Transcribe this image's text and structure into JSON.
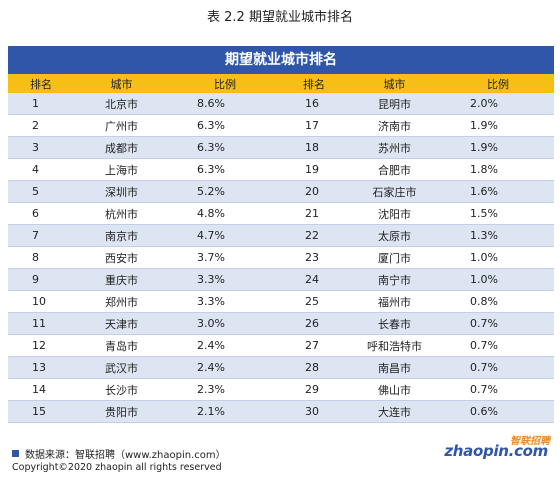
{
  "caption": "表 2.2 期望就业城市排名",
  "banner": "期望就业城市排名",
  "headers": [
    "排名",
    "城市",
    "比例",
    "排名",
    "城市",
    "比例"
  ],
  "rows": [
    {
      "rank1": "1",
      "city1": "北京市",
      "ratio1": "8.6%",
      "rank2": "16",
      "city2": "昆明市",
      "ratio2": "2.0%"
    },
    {
      "rank1": "2",
      "city1": "广州市",
      "ratio1": "6.3%",
      "rank2": "17",
      "city2": "济南市",
      "ratio2": "1.9%"
    },
    {
      "rank1": "3",
      "city1": "成都市",
      "ratio1": "6.3%",
      "rank2": "18",
      "city2": "苏州市",
      "ratio2": "1.9%"
    },
    {
      "rank1": "4",
      "city1": "上海市",
      "ratio1": "6.3%",
      "rank2": "19",
      "city2": "合肥市",
      "ratio2": "1.8%"
    },
    {
      "rank1": "5",
      "city1": "深圳市",
      "ratio1": "5.2%",
      "rank2": "20",
      "city2": "石家庄市",
      "ratio2": "1.6%"
    },
    {
      "rank1": "6",
      "city1": "杭州市",
      "ratio1": "4.8%",
      "rank2": "21",
      "city2": "沈阳市",
      "ratio2": "1.5%"
    },
    {
      "rank1": "7",
      "city1": "南京市",
      "ratio1": "4.7%",
      "rank2": "22",
      "city2": "太原市",
      "ratio2": "1.3%"
    },
    {
      "rank1": "8",
      "city1": "西安市",
      "ratio1": "3.7%",
      "rank2": "23",
      "city2": "厦门市",
      "ratio2": "1.0%"
    },
    {
      "rank1": "9",
      "city1": "重庆市",
      "ratio1": "3.3%",
      "rank2": "24",
      "city2": "南宁市",
      "ratio2": "1.0%"
    },
    {
      "rank1": "10",
      "city1": "郑州市",
      "ratio1": "3.3%",
      "rank2": "25",
      "city2": "福州市",
      "ratio2": "0.8%"
    },
    {
      "rank1": "11",
      "city1": "天津市",
      "ratio1": "3.0%",
      "rank2": "26",
      "city2": "长春市",
      "ratio2": "0.7%"
    },
    {
      "rank1": "12",
      "city1": "青岛市",
      "ratio1": "2.4%",
      "rank2": "27",
      "city2": "呼和浩特市",
      "ratio2": "0.7%"
    },
    {
      "rank1": "13",
      "city1": "武汉市",
      "ratio1": "2.4%",
      "rank2": "28",
      "city2": "南昌市",
      "ratio2": "0.7%"
    },
    {
      "rank1": "14",
      "city1": "长沙市",
      "ratio1": "2.3%",
      "rank2": "29",
      "city2": "佛山市",
      "ratio2": "0.7%"
    },
    {
      "rank1": "15",
      "city1": "贵阳市",
      "ratio1": "2.1%",
      "rank2": "30",
      "city2": "大连市",
      "ratio2": "0.6%"
    }
  ],
  "footer": {
    "source": "数据来源：智联招聘（www.zhaopin.com）",
    "copyright": "Copyright©2020 zhaopin all rights reserved"
  },
  "logo": {
    "zh": "智联招聘",
    "en": "zhaopin.com"
  },
  "colors": {
    "banner": "#2f56a8",
    "header": "#f5bf18",
    "stripe": "#dde5f3"
  }
}
